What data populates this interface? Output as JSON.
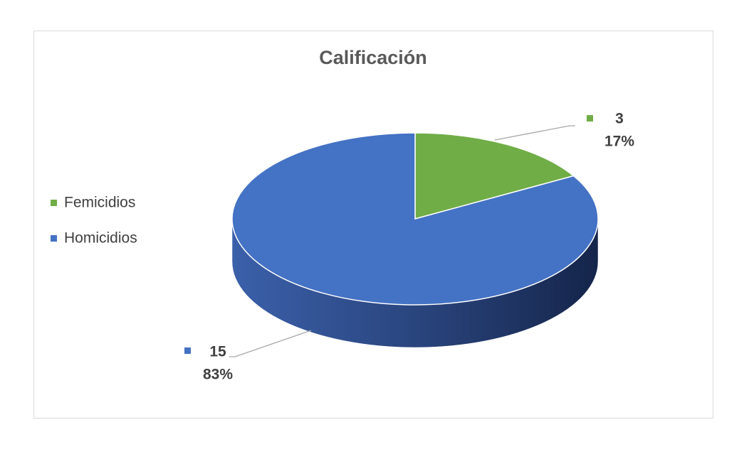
{
  "chart_data": {
    "type": "pie",
    "title": "Calificación",
    "categories": [
      "Femicidios",
      "Homicidios"
    ],
    "values": [
      3,
      15
    ],
    "percent_labels": [
      "17%",
      "83%"
    ],
    "colors": [
      "#70ad47",
      "#4472c4"
    ],
    "legend": "left"
  }
}
